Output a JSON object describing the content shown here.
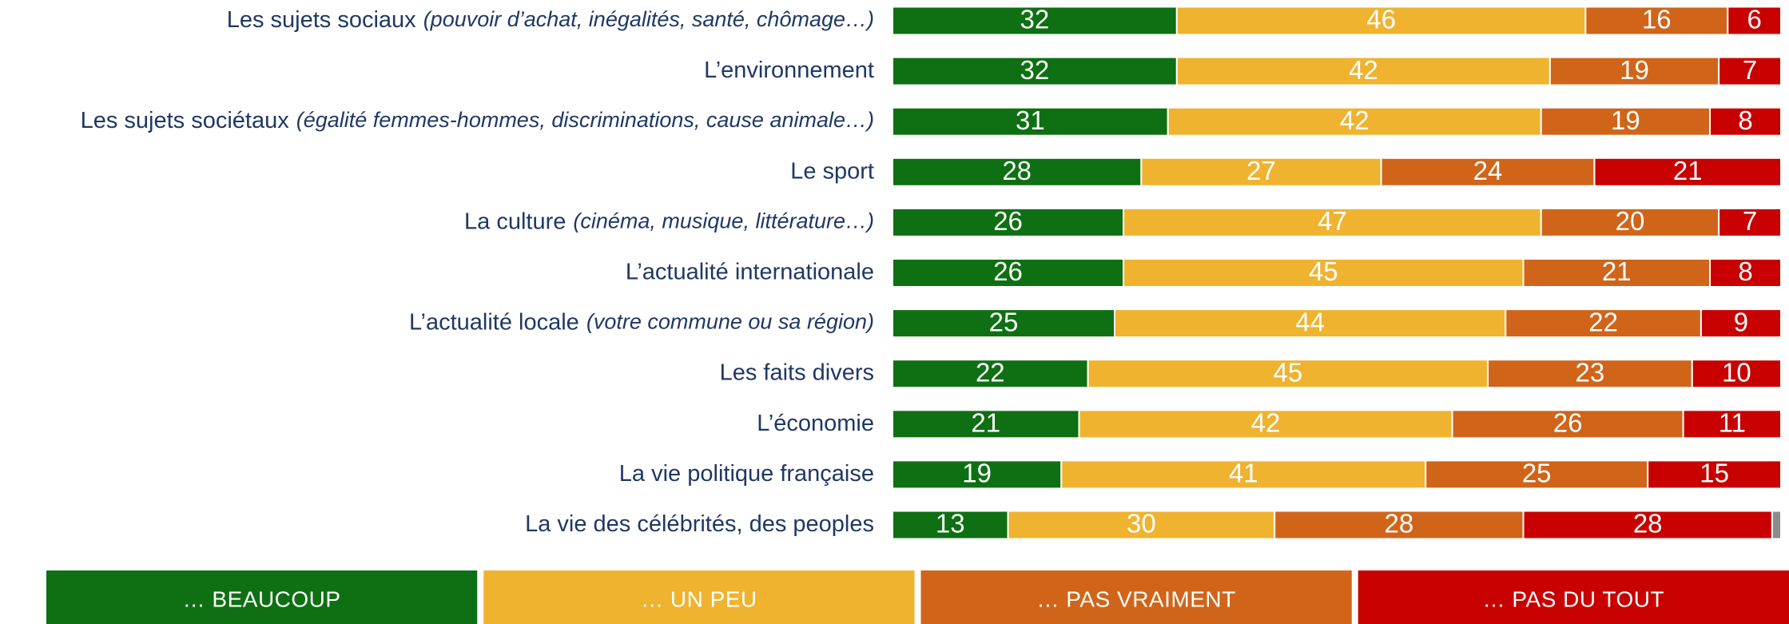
{
  "chart_data": {
    "type": "stacked-bar-horizontal",
    "categories": [
      "Les sujets sociaux",
      "L’environnement",
      "Les sujets sociétaux",
      "Le sport",
      "La culture",
      "L’actualité internationale",
      "L’actualité locale",
      "Les faits divers",
      "L’économie",
      "La vie politique française",
      "La vie des célébrités, des peoples"
    ],
    "category_details": [
      "(pouvoir d’achat, inégalités, santé, chômage…)",
      null,
      "(égalité femmes-hommes, discriminations, cause animale…)",
      null,
      "(cinéma, musique, littérature…)",
      null,
      "(votre commune ou sa région)",
      null,
      null,
      null,
      null
    ],
    "xlim": [
      0,
      100
    ],
    "series": [
      {
        "name": "… BEAUCOUP",
        "color": "#0e7013",
        "values": [
          32,
          32,
          31,
          28,
          26,
          26,
          25,
          22,
          21,
          19,
          13
        ]
      },
      {
        "name": "… UN PEU",
        "color": "#efb32f",
        "values": [
          46,
          42,
          42,
          27,
          47,
          45,
          44,
          45,
          42,
          41,
          30
        ]
      },
      {
        "name": "… PAS VRAIMENT",
        "color": "#d0651a",
        "values": [
          16,
          19,
          19,
          24,
          20,
          21,
          22,
          23,
          26,
          25,
          28
        ]
      },
      {
        "name": "… PAS DU TOUT",
        "color": "#c80000",
        "values": [
          6,
          7,
          8,
          21,
          7,
          8,
          9,
          10,
          11,
          15,
          28
        ]
      },
      {
        "color": "#8c8c8c",
        "values": [
          null,
          null,
          null,
          null,
          null,
          null,
          null,
          null,
          null,
          null,
          1
        ]
      }
    ]
  }
}
